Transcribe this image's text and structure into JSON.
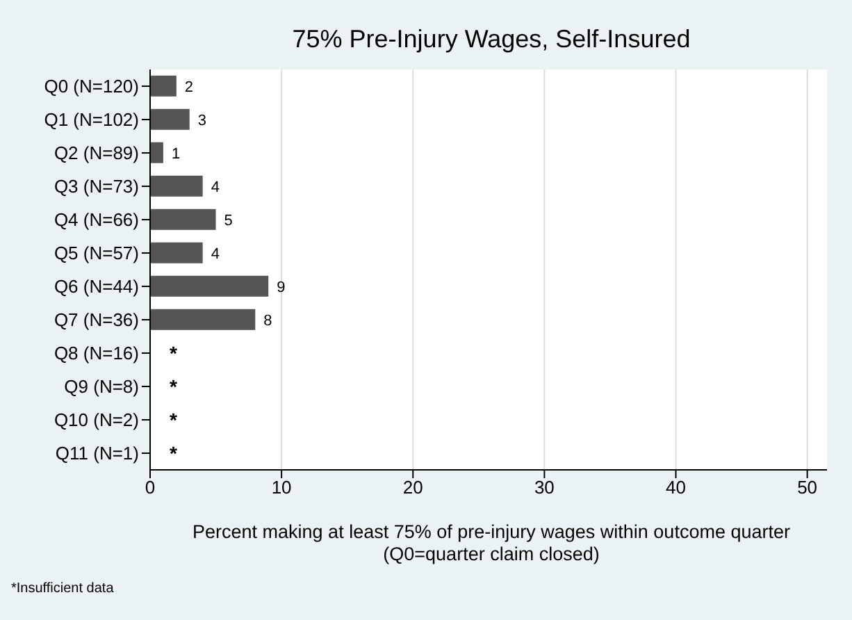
{
  "chart_data": {
    "type": "bar",
    "orientation": "horizontal",
    "title": "75% Pre-Injury Wages, Self-Insured",
    "xlabel": "Percent making at least 75% of pre-injury wages within outcome quarter\n(Q0=quarter claim closed)",
    "categories": [
      "Q0 (N=120)",
      "Q1 (N=102)",
      "Q2 (N=89)",
      "Q3 (N=73)",
      "Q4 (N=66)",
      "Q5 (N=57)",
      "Q6 (N=44)",
      "Q7 (N=36)",
      "Q8 (N=16)",
      "Q9 (N=8)",
      "Q10 (N=2)",
      "Q11 (N=1)"
    ],
    "values": [
      2,
      3,
      1,
      4,
      5,
      4,
      9,
      8,
      null,
      null,
      null,
      null
    ],
    "value_labels": [
      "2",
      "3",
      "1",
      "4",
      "5",
      "4",
      "9",
      "8",
      "*",
      "*",
      "*",
      "*"
    ],
    "color": "#555555",
    "xlim": [
      0,
      51.5
    ],
    "xticks": [
      0,
      10,
      20,
      30,
      40,
      50
    ],
    "grid": "x",
    "annotations": [
      "*Insufficient data"
    ]
  }
}
